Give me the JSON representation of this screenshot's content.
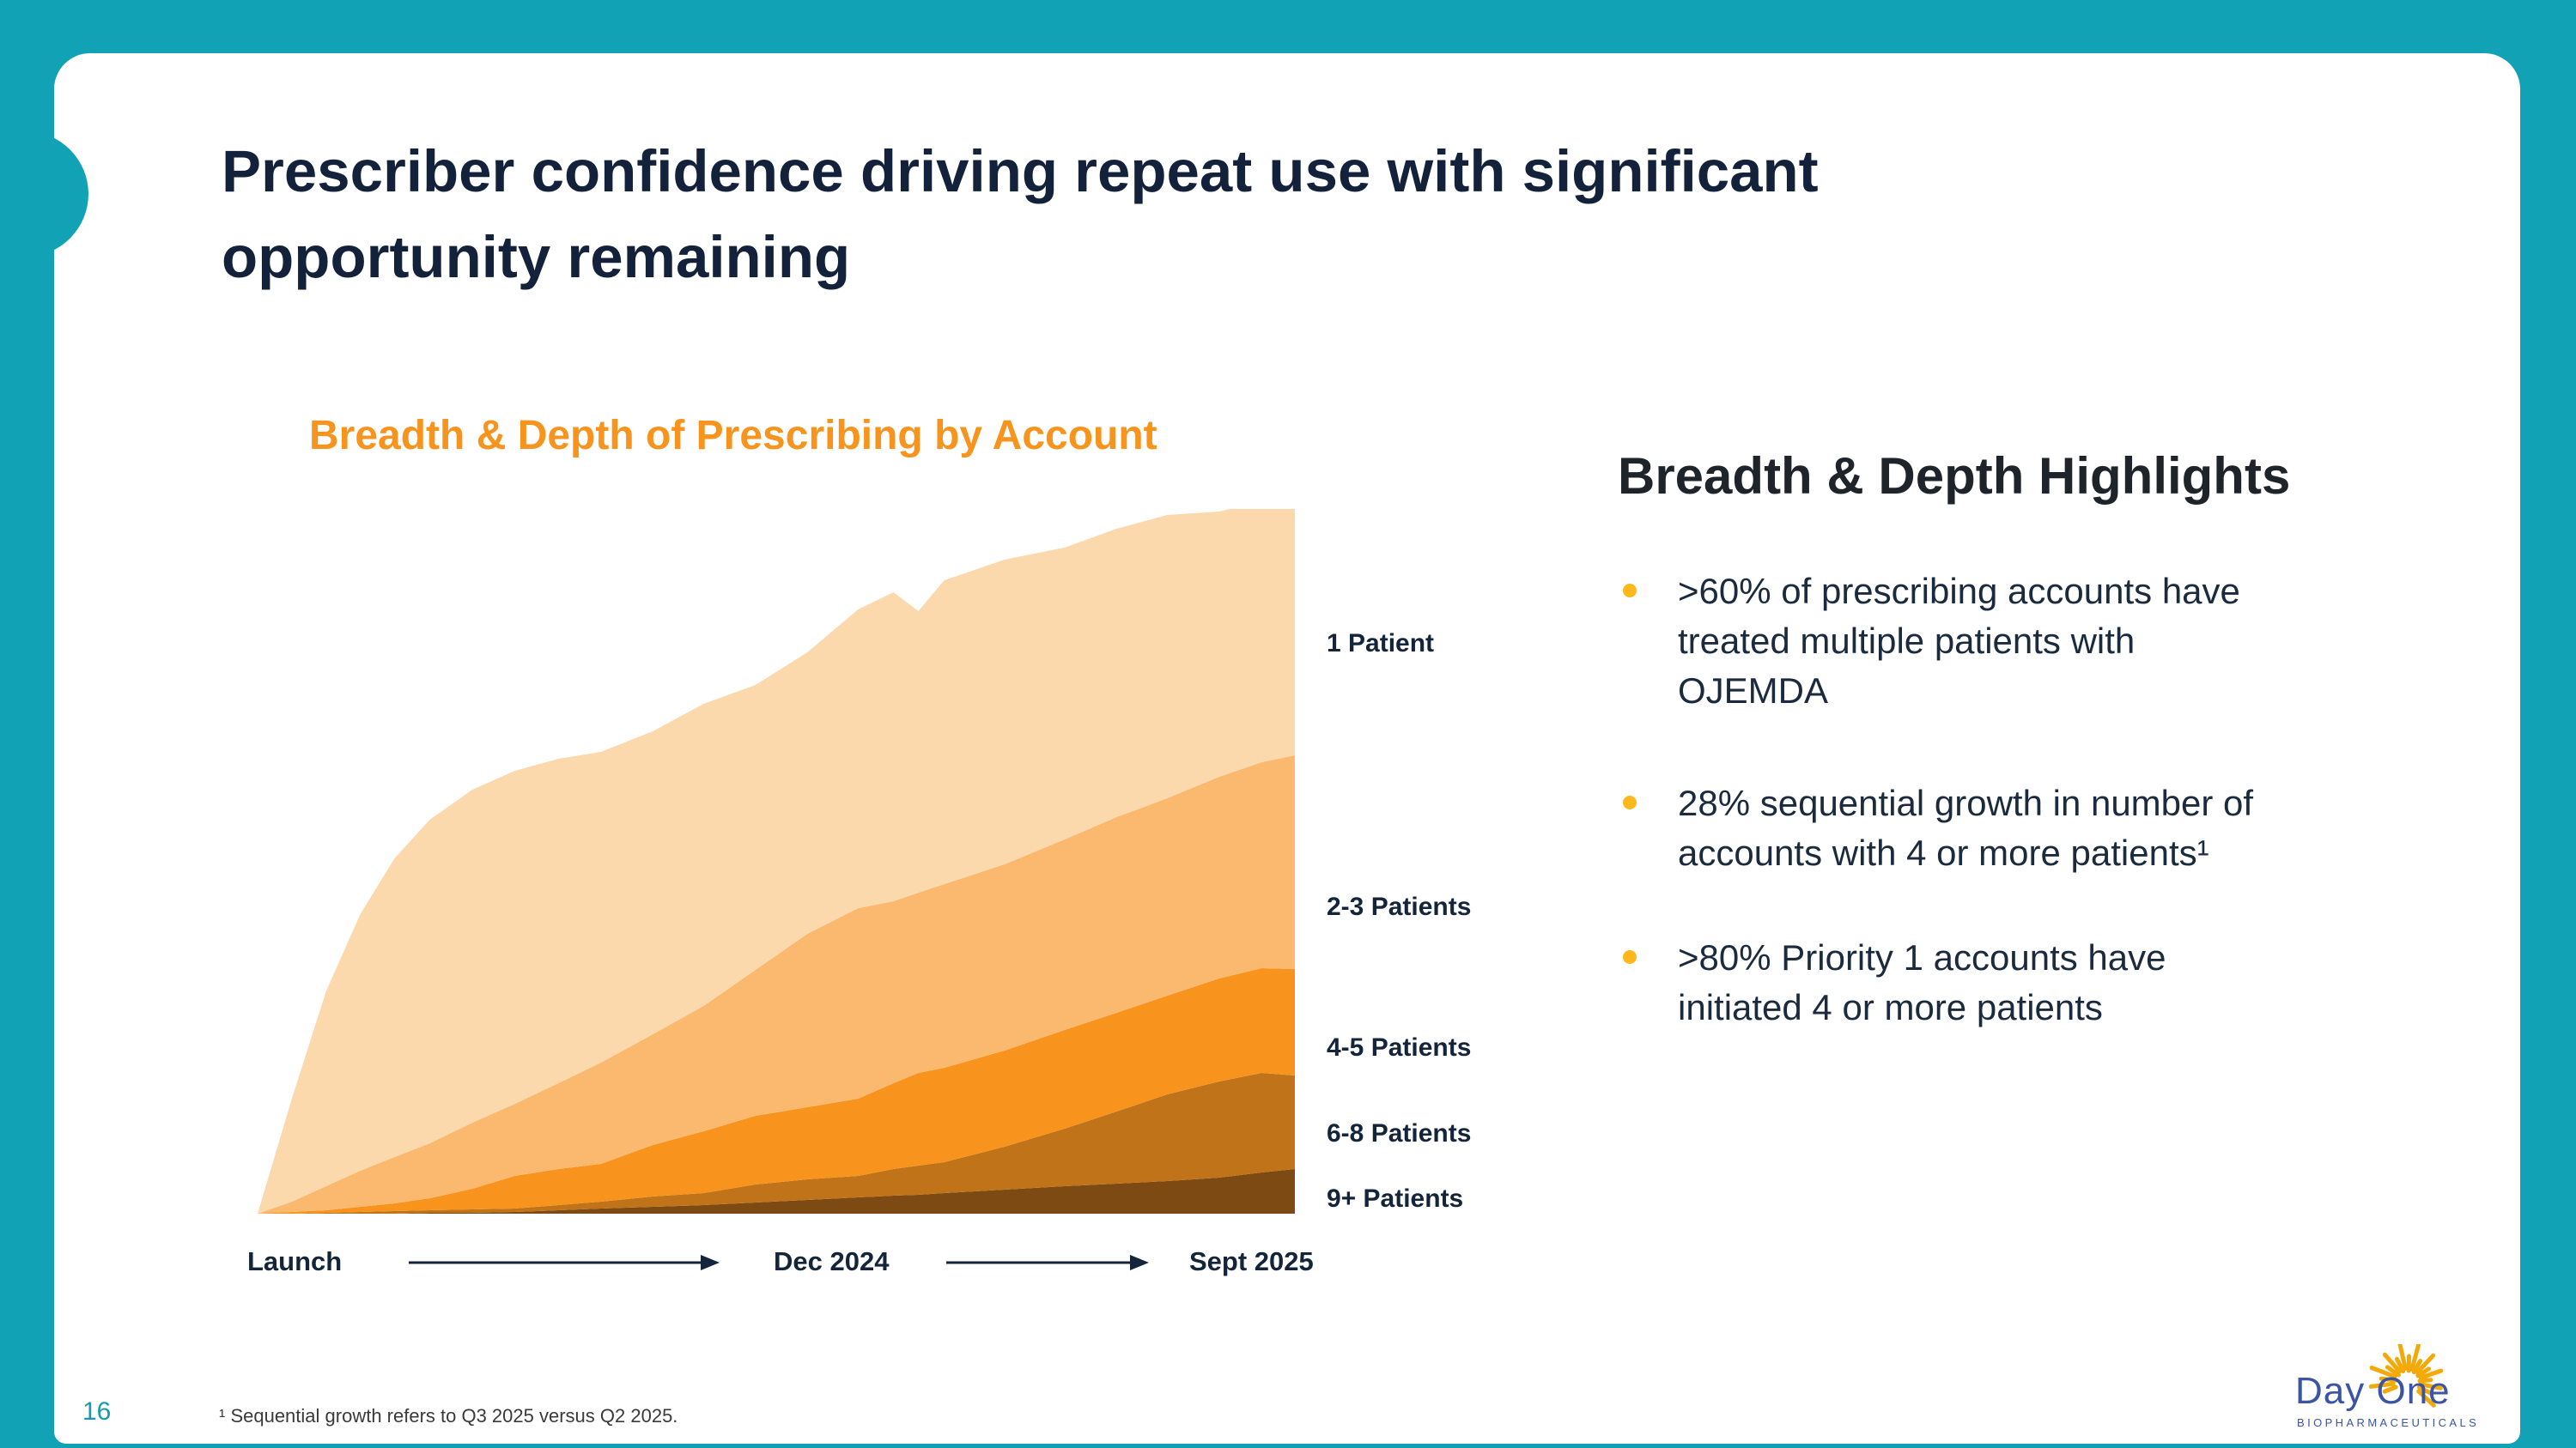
{
  "slide": {
    "title_line1": "Prescriber confidence driving repeat use with significant",
    "title_line2": "opportunity remaining",
    "page_number": "16",
    "footnote": "¹ Sequential growth refers to Q3 2025 versus Q2 2025."
  },
  "chart_data": {
    "type": "area",
    "stacked": true,
    "title": "Breadth & Depth of Prescribing by Account",
    "x_axis_labels": [
      "Launch",
      "Dec 2024",
      "Sept 2025"
    ],
    "x_relative": [
      0,
      0.033,
      0.066,
      0.099,
      0.132,
      0.166,
      0.207,
      0.248,
      0.29,
      0.331,
      0.381,
      0.43,
      0.48,
      0.53,
      0.579,
      0.613,
      0.637,
      0.662,
      0.72,
      0.778,
      0.828,
      0.877,
      0.927,
      0.968,
      1
    ],
    "y_unit": "relative number of accounts (no y-axis shown)",
    "legend_position": "right",
    "grid": false,
    "series": [
      {
        "name": "9+ Patients",
        "color": "#7C4A12",
        "values": [
          0,
          0,
          0,
          0,
          0,
          1,
          1,
          2,
          4,
          6,
          8,
          10,
          13,
          16,
          19,
          21,
          22,
          24,
          28,
          32,
          35,
          38,
          42,
          48,
          52
        ]
      },
      {
        "name": "6-8 Patients",
        "color": "#C07318",
        "values": [
          0,
          0,
          1,
          2,
          3,
          3,
          4,
          4,
          6,
          8,
          12,
          14,
          21,
          24,
          25,
          31,
          34,
          36,
          50,
          67,
          84,
          101,
          112,
          116,
          109
        ]
      },
      {
        "name": "4-5 Patients",
        "color": "#F8941E",
        "values": [
          0,
          2,
          3,
          6,
          9,
          14,
          24,
          38,
          42,
          44,
          60,
          72,
          80,
          84,
          90,
          100,
          108,
          110,
          112,
          115,
          115,
          115,
          120,
          122,
          124
        ]
      },
      {
        "name": "2-3 Patients",
        "color": "#FBB970",
        "values": [
          0,
          12,
          28,
          42,
          54,
          64,
          77,
          84,
          100,
          118,
          129,
          146,
          170,
          202,
          222,
          212,
          210,
          214,
          217,
          222,
          228,
          230,
          235,
          240,
          249
        ]
      },
      {
        "name": "1 Patient",
        "color": "#FCD9AC",
        "values": [
          0,
          120,
          227,
          299,
          348,
          377,
          388,
          388,
          378,
          362,
          353,
          352,
          332,
          328,
          348,
          360,
          328,
          354,
          355,
          340,
          336,
          330,
          309,
          304,
          287
        ]
      }
    ]
  },
  "highlights": {
    "heading": "Breadth & Depth Highlights",
    "bullet_color": "#FFB81C",
    "bullets": [
      {
        "lines": [
          ">60% of prescribing accounts have",
          "treated multiple patients with",
          "OJEMDA"
        ]
      },
      {
        "lines": [
          "28% sequential growth in number of",
          "accounts with 4 or more patients¹"
        ]
      },
      {
        "lines": [
          ">80% Priority 1 accounts have",
          "initiated 4 or more patients"
        ]
      }
    ]
  },
  "logo": {
    "name": "Day One",
    "subtext": "BIOPHARMACEUTICALS"
  },
  "colors": {
    "frame_teal": "#12A2B5",
    "accent_orange": "#F7941D",
    "title_navy": "#13223A",
    "page_number_teal": "#1899AE",
    "logo_blue": "#3B54A4"
  }
}
